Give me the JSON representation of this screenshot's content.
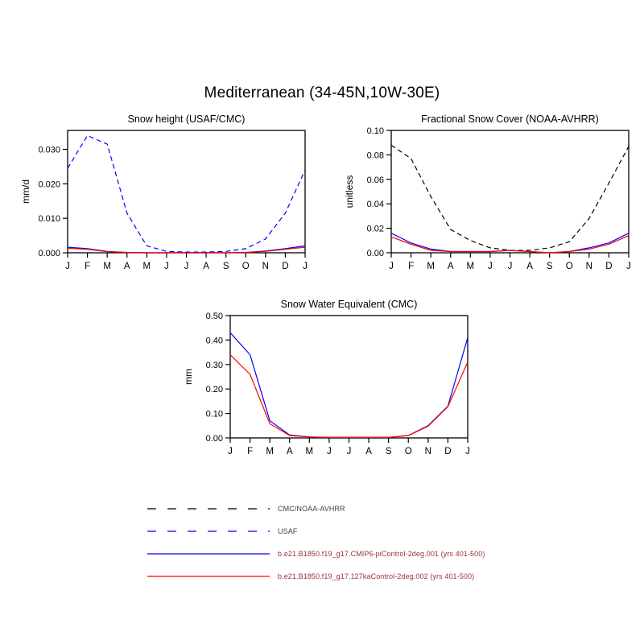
{
  "page_title": "Mediterranean (34-45N,10W-30E)",
  "chart_data": [
    {
      "type": "line",
      "title": "Snow height (USAF/CMC)",
      "xlabel": "",
      "ylabel": "mm/d",
      "ylim": [
        0,
        0.0355
      ],
      "yticks": [
        0,
        0.01,
        0.02,
        0.03
      ],
      "ytick_labels": [
        "0.000",
        "0.010",
        "0.020",
        "0.030"
      ],
      "categories": [
        "J",
        "F",
        "M",
        "A",
        "M",
        "J",
        "J",
        "A",
        "S",
        "O",
        "N",
        "D",
        "J"
      ],
      "grid": false,
      "legend_position": "bottom-figure",
      "series": [
        {
          "name": "USAF",
          "color": "#0000ff",
          "dashed": true,
          "values": [
            0.0245,
            0.034,
            0.0315,
            0.0115,
            0.002,
            0.0004,
            0.0002,
            0.0002,
            0.0004,
            0.0012,
            0.004,
            0.0115,
            0.024
          ]
        },
        {
          "name": "b.e21.B1850.f19_g17.CMIP6-piControl-2deg.001 (yrs 401-500)",
          "color": "#0000ff",
          "dashed": false,
          "values": [
            0.0016,
            0.0012,
            0.0004,
            0.0001,
            0,
            0,
            0,
            0,
            0,
            0.0001,
            0.0005,
            0.0012,
            0.002
          ]
        },
        {
          "name": "b.e21.B1850.f19_g17.127kaControl-2deg.002 (yrs 401-500)",
          "color": "#ff0000",
          "dashed": false,
          "values": [
            0.0013,
            0.001,
            0.0003,
            0.0001,
            0,
            0,
            0,
            0,
            0,
            0.0001,
            0.0004,
            0.001,
            0.0016
          ]
        }
      ]
    },
    {
      "type": "line",
      "title": "Fractional Snow Cover (NOAA-AVHRR)",
      "xlabel": "",
      "ylabel": "unitless",
      "ylim": [
        0,
        0.1
      ],
      "yticks": [
        0,
        0.02,
        0.04,
        0.06,
        0.08,
        0.1
      ],
      "ytick_labels": [
        "0.00",
        "0.02",
        "0.04",
        "0.06",
        "0.08",
        "0.10"
      ],
      "categories": [
        "J",
        "F",
        "M",
        "A",
        "M",
        "J",
        "J",
        "A",
        "S",
        "O",
        "N",
        "D",
        "J"
      ],
      "grid": false,
      "legend_position": "bottom-figure",
      "series": [
        {
          "name": "CMC/NOAA-AVHRR",
          "color": "#000000",
          "dashed": true,
          "values": [
            0.088,
            0.077,
            0.046,
            0.019,
            0.01,
            0.004,
            0.002,
            0.002,
            0.004,
            0.009,
            0.028,
            0.057,
            0.087
          ]
        },
        {
          "name": "b.e21.B1850.f19_g17.CMIP6-piControl-2deg.001 (yrs 401-500)",
          "color": "#0000ff",
          "dashed": false,
          "values": [
            0.016,
            0.008,
            0.003,
            0.001,
            0.001,
            0.001,
            0.002,
            0.001,
            0,
            0.001,
            0.004,
            0.008,
            0.016
          ]
        },
        {
          "name": "b.e21.B1850.f19_g17.127kaControl-2deg.002 (yrs 401-500)",
          "color": "#ff0000",
          "dashed": false,
          "values": [
            0.013,
            0.007,
            0.002,
            0.001,
            0.001,
            0.001,
            0.002,
            0.001,
            0,
            0.001,
            0.003,
            0.007,
            0.014
          ]
        }
      ]
    },
    {
      "type": "line",
      "title": "Snow Water Equivalent (CMC)",
      "xlabel": "",
      "ylabel": "mm",
      "ylim": [
        0,
        0.5
      ],
      "yticks": [
        0,
        0.1,
        0.2,
        0.3,
        0.4,
        0.5
      ],
      "ytick_labels": [
        "0.00",
        "0.10",
        "0.20",
        "0.30",
        "0.40",
        "0.50"
      ],
      "categories": [
        "J",
        "F",
        "M",
        "A",
        "M",
        "J",
        "J",
        "A",
        "S",
        "O",
        "N",
        "D",
        "J"
      ],
      "grid": false,
      "legend_position": "bottom-figure",
      "series": [
        {
          "name": "b.e21.B1850.f19_g17.CMIP6-piControl-2deg.001 (yrs 401-500)",
          "color": "#0000ff",
          "dashed": false,
          "values": [
            0.43,
            0.34,
            0.07,
            0.012,
            0.004,
            0.002,
            0.002,
            0.002,
            0.002,
            0.01,
            0.05,
            0.13,
            0.41
          ]
        },
        {
          "name": "b.e21.B1850.f19_g17.127kaControl-2deg.002 (yrs 401-500)",
          "color": "#ff0000",
          "dashed": false,
          "values": [
            0.34,
            0.26,
            0.058,
            0.01,
            0.004,
            0.002,
            0.002,
            0.002,
            0.002,
            0.01,
            0.048,
            0.128,
            0.31
          ]
        }
      ]
    }
  ],
  "legend": {
    "items": [
      {
        "label": "CMC/NOAA-AVHRR",
        "line_color": "#000000",
        "dashed": true,
        "label_color": "#404040"
      },
      {
        "label": "USAF",
        "line_color": "#0000ff",
        "dashed": true,
        "label_color": "#404040"
      },
      {
        "label": "b.e21.B1850.f19_g17.CMIP6-piControl-2deg.001 (yrs 401-500)",
        "line_color": "#0000ff",
        "dashed": false,
        "label_color": "#993333"
      },
      {
        "label": "b.e21.B1850.f19_g17.127kaControl-2deg.002 (yrs 401-500)",
        "line_color": "#ff0000",
        "dashed": false,
        "label_color": "#993333"
      }
    ]
  }
}
